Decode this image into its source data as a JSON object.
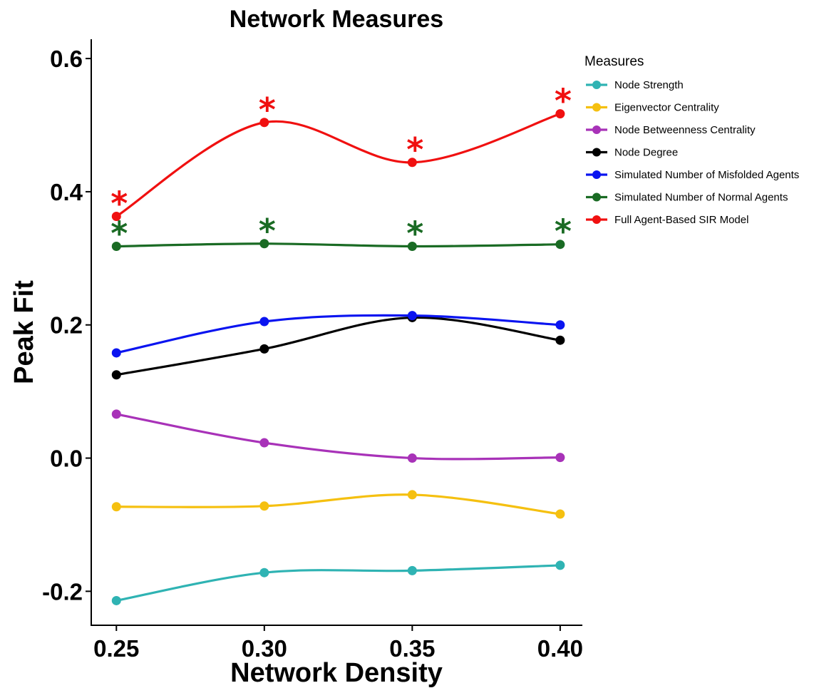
{
  "chart_data": {
    "type": "line",
    "title": "Network Measures",
    "xlabel": "Network Density",
    "ylabel": "Peak Fit",
    "x": [
      0.25,
      0.3,
      0.35,
      0.4
    ],
    "x_tick_labels": [
      "0.25",
      "0.30",
      "0.35",
      "0.40"
    ],
    "xlim": [
      0.2415,
      0.4075
    ],
    "y_ticks": [
      -0.2,
      0.0,
      0.2,
      0.4,
      0.6
    ],
    "y_tick_labels": [
      "-0.2",
      "0.0",
      "0.2",
      "0.4",
      "0.6"
    ],
    "ylim": [
      -0.251,
      0.629
    ],
    "grid": false,
    "legend": {
      "title": "Measures",
      "position": "right"
    },
    "significance_marker": "*",
    "series": [
      {
        "name": "Node Strength",
        "color": "#2fb3b3",
        "values": [
          -0.214,
          -0.172,
          -0.169,
          -0.161
        ],
        "significant": [
          false,
          false,
          false,
          false
        ]
      },
      {
        "name": "Eigenvector Centrality",
        "color": "#f5c010",
        "values": [
          -0.073,
          -0.072,
          -0.055,
          -0.084
        ],
        "significant": [
          false,
          false,
          false,
          false
        ]
      },
      {
        "name": "Node Betweenness Centrality",
        "color": "#a832b8",
        "values": [
          0.066,
          0.023,
          0.0,
          0.001
        ],
        "significant": [
          false,
          false,
          false,
          false
        ]
      },
      {
        "name": "Node Degree",
        "color": "#000000",
        "values": [
          0.125,
          0.164,
          0.211,
          0.177
        ],
        "significant": [
          false,
          false,
          false,
          false
        ]
      },
      {
        "name": "Simulated Number of Misfolded Agents",
        "color": "#0a14f0",
        "values": [
          0.158,
          0.205,
          0.214,
          0.2
        ],
        "significant": [
          false,
          false,
          false,
          false
        ]
      },
      {
        "name": "Simulated Number of Normal Agents",
        "color": "#1a6b24",
        "values": [
          0.318,
          0.322,
          0.318,
          0.321
        ],
        "significant": [
          true,
          true,
          true,
          true
        ]
      },
      {
        "name": "Full Agent-Based SIR Model",
        "color": "#f01010",
        "values": [
          0.363,
          0.504,
          0.444,
          0.517
        ],
        "significant": [
          true,
          true,
          true,
          true
        ]
      }
    ]
  }
}
